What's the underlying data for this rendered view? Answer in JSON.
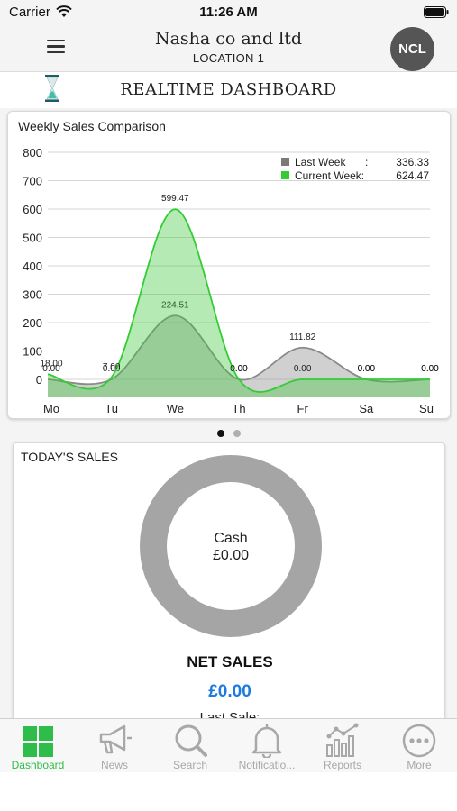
{
  "status_bar": {
    "carrier": "Carrier",
    "time": "11:26 AM"
  },
  "header": {
    "company": "Nasha co and ltd",
    "location": "LOCATION 1",
    "avatar_initials": "NCL"
  },
  "dashboard": {
    "title": "REALTIME DASHBOARD"
  },
  "chart_card": {
    "title": "Weekly Sales Comparison"
  },
  "chart_data": {
    "type": "area",
    "title": "Weekly Sales Comparison",
    "categories": [
      "Mo",
      "Tu",
      "We",
      "Th",
      "Fr",
      "Sa",
      "Su"
    ],
    "y_ticks": [
      "800",
      "700",
      "600",
      "500",
      "400",
      "300",
      "200",
      "100",
      "0"
    ],
    "ylim": [
      0,
      800
    ],
    "grid": true,
    "legend_position": "top-right",
    "legend": [
      {
        "label": "Last Week",
        "sep": ":",
        "value": "336.33",
        "color": "#7a7a7a"
      },
      {
        "label": "Current Week:",
        "sep": "",
        "value": "624.47",
        "color": "#33cc33"
      }
    ],
    "series": [
      {
        "name": "Last Week",
        "color": "#8a8a8a",
        "values": [
          0,
          0,
          224.51,
          0,
          111.82,
          0,
          0
        ],
        "labels": [
          "0.00",
          "0.00",
          "224.51",
          "0.00",
          "111.82",
          "0.00",
          "0.00"
        ]
      },
      {
        "name": "Current Week",
        "color": "#33cc33",
        "values": [
          18,
          7,
          599.47,
          0,
          0,
          0,
          0
        ],
        "labels": [
          "18.00",
          "7.00",
          "599.47",
          "0.00",
          "0.00",
          "0.00",
          "0.00"
        ]
      }
    ]
  },
  "pager": {
    "count": 2,
    "active": 0
  },
  "todays_sales": {
    "title": "TODAY'S SALES",
    "donut_label": "Cash",
    "donut_value": "£0.00",
    "net_label": "NET SALES",
    "net_value": "£0.00",
    "last_sale_label": "Last Sale:"
  },
  "tabs": [
    {
      "label": "Dashboard",
      "icon": "dashboard-icon",
      "active": true
    },
    {
      "label": "News",
      "icon": "megaphone-icon",
      "active": false
    },
    {
      "label": "Search",
      "icon": "search-icon",
      "active": false
    },
    {
      "label": "Notificatio...",
      "icon": "bell-icon",
      "active": false
    },
    {
      "label": "Reports",
      "icon": "reports-icon",
      "active": false
    },
    {
      "label": "More",
      "icon": "more-icon",
      "active": false
    }
  ],
  "colors": {
    "active_tab": "#2ebd4a",
    "inactive_tab": "#a8a8a8",
    "net_value": "#1c7be0",
    "donut": "#a5a5a5"
  }
}
